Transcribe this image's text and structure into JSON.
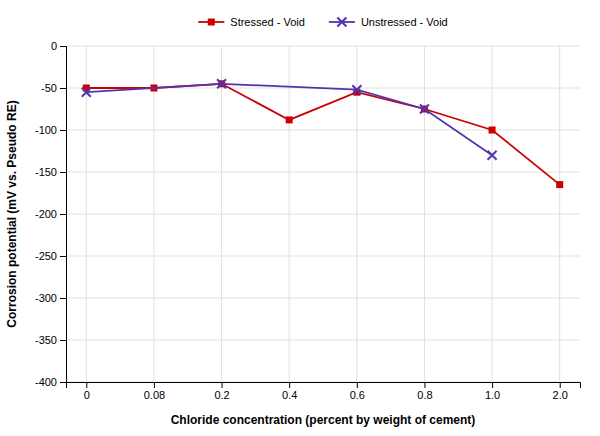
{
  "chart_data": {
    "type": "line",
    "xlabel": "Chloride concentration (percent by weight of cement)",
    "ylabel": "Corrosion potential (mV vs. Pseudo RE)",
    "categories": [
      "0",
      "0.08",
      "0.2",
      "0.4",
      "0.6",
      "0.8",
      "1.0",
      "2.0"
    ],
    "series": [
      {
        "name": "Stressed - Void",
        "color": "#CC0000",
        "marker": "square",
        "line_style": "solid",
        "values": [
          -50,
          -50,
          -45,
          -88,
          -55,
          -75,
          -100,
          -165
        ]
      },
      {
        "name": "Unstressed - Void",
        "color": "#5533AA",
        "marker": "x",
        "line_style": "solid",
        "x": [
          "0",
          "0.2",
          "0.6",
          "0.8",
          "1.0"
        ],
        "values": [
          -55,
          -45,
          -52,
          -75,
          -130
        ]
      }
    ],
    "ylim": [
      -400,
      0
    ],
    "yticks": [
      0,
      -50,
      -100,
      -150,
      -200,
      -250,
      -300,
      -350,
      -400
    ],
    "grid": true,
    "legend": "top"
  }
}
